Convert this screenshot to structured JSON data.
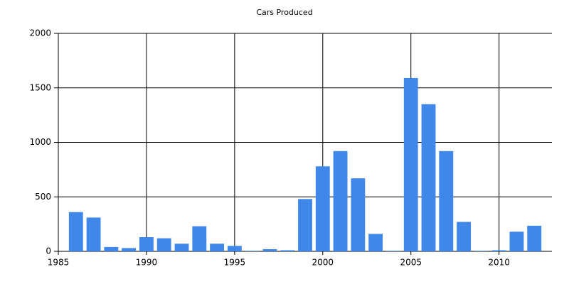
{
  "chart_data": {
    "type": "bar",
    "title": "Cars Produced",
    "x": [
      1986,
      1987,
      1988,
      1989,
      1990,
      1991,
      1992,
      1993,
      1994,
      1995,
      1996,
      1997,
      1998,
      1999,
      2000,
      2001,
      2002,
      2003,
      2004,
      2005,
      2006,
      2007,
      2008,
      2009,
      2010,
      2011,
      2012
    ],
    "values": [
      360,
      310,
      40,
      30,
      130,
      120,
      70,
      230,
      70,
      50,
      5,
      20,
      10,
      480,
      780,
      920,
      670,
      160,
      5,
      1590,
      1350,
      920,
      270,
      5,
      10,
      180,
      235
    ],
    "color": "#3f87e8",
    "xlim": [
      1985,
      2013
    ],
    "xticks": [
      1985,
      1990,
      1995,
      2000,
      2005,
      2010
    ],
    "ylim": [
      0,
      2000
    ],
    "yticks": [
      0,
      500,
      1000,
      1500,
      2000
    ],
    "grid": true
  }
}
